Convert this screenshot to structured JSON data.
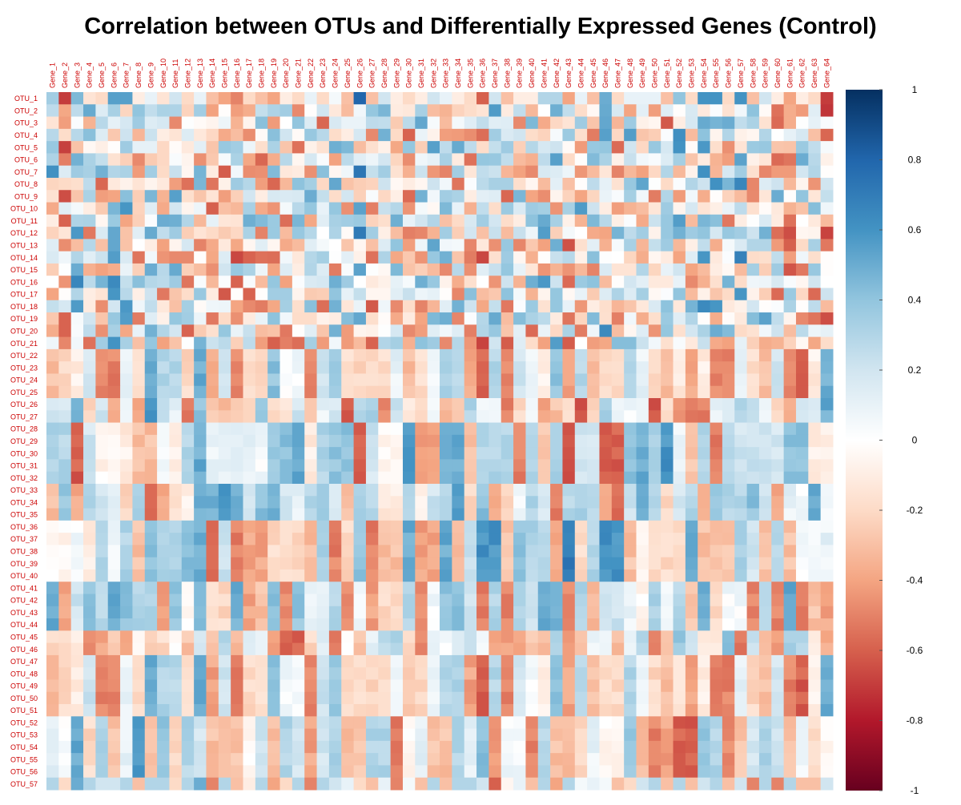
{
  "chart_data": {
    "type": "heatmap",
    "title": "Correlation between OTUs and Differentially Expressed Genes (Control)",
    "columns": [
      "Gene_1",
      "Gene_2",
      "Gene_3",
      "Gene_4",
      "Gene_5",
      "Gene_6",
      "Gene_7",
      "Gene_8",
      "Gene_9",
      "Gene_10",
      "Gene_11",
      "Gene_12",
      "Gene_13",
      "Gene_14",
      "Gene_15",
      "Gene_16",
      "Gene_17",
      "Gene_18",
      "Gene_19",
      "Gene_20",
      "Gene_21",
      "Gene_22",
      "Gene_23",
      "Gene_24",
      "Gene_25",
      "Gene_26",
      "Gene_27",
      "Gene_28",
      "Gene_29",
      "Gene_30",
      "Gene_31",
      "Gene_32",
      "Gene_33",
      "Gene_34",
      "Gene_35",
      "Gene_36",
      "Gene_37",
      "Gene_38",
      "Gene_39",
      "Gene_40",
      "Gene_41",
      "Gene_42",
      "Gene_43",
      "Gene_44",
      "Gene_45",
      "Gene_46",
      "Gene_47",
      "Gene_48",
      "Gene_49",
      "Gene_50",
      "Gene_51",
      "Gene_52",
      "Gene_53",
      "Gene_54",
      "Gene_55",
      "Gene_56",
      "Gene_57",
      "Gene_58",
      "Gene_59",
      "Gene_60",
      "Gene_61",
      "Gene_62",
      "Gene_63",
      "Gene_64"
    ],
    "rows": [
      "OTU_1",
      "OTU_2",
      "OTU_3",
      "OTU_4",
      "OTU_5",
      "OTU_6",
      "OTU_7",
      "OTU_8",
      "OTU_9",
      "OTU_10",
      "OTU_11",
      "OTU_12",
      "OTU_13",
      "OTU_14",
      "OTU_15",
      "OTU_16",
      "OTU_17",
      "OTU_18",
      "OTU_19",
      "OTU_20",
      "OTU_21",
      "OTU_22",
      "OTU_23",
      "OTU_24",
      "OTU_25",
      "OTU_26",
      "OTU_27",
      "OTU_28",
      "OTU_29",
      "OTU_30",
      "OTU_31",
      "OTU_32",
      "OTU_33",
      "OTU_34",
      "OTU_35",
      "OTU_36",
      "OTU_37",
      "OTU_38",
      "OTU_39",
      "OTU_40",
      "OTU_41",
      "OTU_42",
      "OTU_43",
      "OTU_44",
      "OTU_45",
      "OTU_46",
      "OTU_47",
      "OTU_48",
      "OTU_49",
      "OTU_50",
      "OTU_51",
      "OTU_52",
      "OTU_53",
      "OTU_54",
      "OTU_55",
      "OTU_56",
      "OTU_57"
    ],
    "value_range": [
      -1,
      1
    ],
    "row_blocks": [
      {
        "rows": [
          1,
          21
        ],
        "pattern": [
          0.35,
          -0.7,
          0.45,
          -0.15,
          -0.2,
          0.55,
          0.55,
          -0.1,
          0.1,
          -0.15,
          0.2,
          -0.2,
          0.1,
          -0.3,
          -0.4,
          -0.5,
          -0.2,
          -0.3,
          -0.4,
          -0.1,
          -0.2,
          0.1,
          -0.2,
          0.05,
          -0.3,
          0.8,
          -0.3,
          0.2,
          -0.1,
          -0.2,
          -0.1,
          0.2,
          0.1,
          -0.1,
          -0.2,
          -0.6,
          0.2,
          -0.3,
          -0.1,
          -0.1,
          0.3,
          0.3,
          -0.4,
          0.1,
          -0.3,
          0.5,
          -0.2,
          0.1,
          0.1,
          0.1,
          -0.3,
          0.4,
          -0.2,
          0.6,
          0.6,
          -0.2,
          0.6,
          -0.3,
          0.2,
          -0.1,
          -0.4,
          -0.1,
          -0.2,
          -0.7
        ],
        "noise": 0.55
      },
      {
        "rows": [
          22,
          25
        ],
        "pattern": [
          -0.3,
          -0.2,
          -0.1,
          0.2,
          -0.5,
          -0.5,
          0.1,
          -0.2,
          0.5,
          0.3,
          0.3,
          -0.2,
          0.5,
          -0.4,
          0.2,
          -0.5,
          -0.2,
          -0.2,
          0.4,
          0.05,
          0.05,
          -0.5,
          0.2,
          0.4,
          -0.2,
          -0.2,
          -0.2,
          -0.2,
          0.1,
          -0.3,
          -0.2,
          0.05,
          0.3,
          0.3,
          -0.4,
          -0.6,
          0.3,
          -0.5,
          0.2,
          0.05,
          -0.1,
          0.4,
          -0.4,
          0.3,
          -0.3,
          -0.2,
          -0.2,
          0.3,
          0.1,
          -0.2,
          -0.3,
          -0.1,
          -0.4,
          -0.1,
          -0.5,
          -0.5,
          0.1,
          -0.2,
          -0.3,
          0.2,
          -0.5,
          -0.6,
          -0.1,
          0.5
        ],
        "noise": 0.06
      },
      {
        "rows": [
          26,
          27
        ],
        "pattern": [
          0.2,
          0.2,
          0.5,
          -0.2,
          0.2,
          -0.4,
          0.05,
          -0.4,
          0.6,
          0.3,
          0.1,
          -0.5,
          0.4,
          -0.3,
          -0.3,
          -0.3,
          -0.2,
          0.4,
          -0.2,
          -0.1,
          0.2,
          -0.3,
          0.1,
          0.2,
          -0.6,
          0.3,
          0.3,
          -0.5,
          0.2,
          -0.1,
          -0.2,
          0.1,
          -0.3,
          -0.3,
          0.3,
          0.1,
          0.1,
          -0.5,
          -0.2,
          0.1,
          -0.4,
          -0.3,
          -0.2,
          -0.6,
          -0.2,
          0.3,
          0.05,
          0.05,
          0.05,
          -0.6,
          -0.2,
          -0.5,
          -0.5,
          -0.5,
          0.1,
          0.1,
          0.3,
          0.3,
          0.1,
          -0.2,
          -0.4,
          0.2,
          0.2,
          0.5
        ],
        "noise": 0.06
      },
      {
        "rows": [
          28,
          32
        ],
        "pattern": [
          0.3,
          0.3,
          -0.6,
          0.2,
          -0.05,
          -0.05,
          -0.1,
          -0.3,
          -0.3,
          0.05,
          -0.1,
          0.3,
          0.5,
          0.1,
          0.1,
          0.1,
          0.1,
          0.05,
          0.4,
          0.4,
          0.5,
          -0.1,
          0.3,
          0.4,
          0.4,
          -0.6,
          0.2,
          -0.05,
          -0.05,
          0.6,
          -0.4,
          -0.4,
          0.5,
          0.5,
          -0.3,
          0.3,
          0.3,
          0.3,
          -0.5,
          0.3,
          -0.3,
          0.3,
          -0.6,
          0.2,
          0.2,
          -0.6,
          -0.6,
          0.4,
          0.5,
          0.3,
          0.6,
          0.1,
          -0.3,
          0.3,
          -0.5,
          0.3,
          0.2,
          0.2,
          0.2,
          0.2,
          0.4,
          0.4,
          -0.1,
          -0.1
        ],
        "noise": 0.06
      },
      {
        "rows": [
          33,
          35
        ],
        "pattern": [
          -0.3,
          0.4,
          -0.4,
          0.3,
          0.2,
          0.1,
          -0.2,
          0.3,
          -0.6,
          -0.4,
          -0.2,
          -0.1,
          0.5,
          0.5,
          0.6,
          0.5,
          0.2,
          0.4,
          0.5,
          0.2,
          0.1,
          0.3,
          0.4,
          0.2,
          -0.3,
          0.3,
          0.3,
          -0.1,
          -0.1,
          0.3,
          -0.05,
          0.2,
          0.3,
          0.6,
          -0.2,
          0.4,
          -0.4,
          -0.2,
          0.05,
          0.3,
          0.2,
          -0.5,
          0.3,
          0.3,
          0.3,
          -0.4,
          -0.6,
          0.2,
          0.5,
          0.3,
          -0.2,
          0.2,
          0.3,
          -0.4,
          0.4,
          0.3,
          0.3,
          0.4,
          0.2,
          -0.4,
          0.1,
          0.05,
          0.5,
          0.05
        ],
        "noise": 0.06
      },
      {
        "rows": [
          36,
          40
        ],
        "pattern": [
          -0.05,
          -0.05,
          0.05,
          -0.1,
          0.3,
          0.05,
          0.3,
          -0.3,
          0.4,
          0.3,
          0.3,
          0.4,
          0.5,
          -0.6,
          0.2,
          -0.5,
          -0.4,
          -0.4,
          -0.2,
          -0.2,
          -0.2,
          -0.3,
          0.3,
          -0.5,
          -0.2,
          0.4,
          -0.5,
          -0.3,
          -0.3,
          0.5,
          -0.4,
          -0.4,
          0.5,
          -0.3,
          0.2,
          0.6,
          0.6,
          -0.3,
          0.4,
          0.3,
          0.3,
          -0.4,
          0.7,
          -0.2,
          0.3,
          0.6,
          0.6,
          -0.3,
          -0.05,
          -0.2,
          -0.2,
          -0.2,
          0.5,
          -0.3,
          -0.3,
          -0.3,
          0.3,
          0.2,
          -0.3,
          0.3,
          -0.3,
          0.05,
          0.05,
          0.1
        ],
        "noise": 0.06
      },
      {
        "rows": [
          41,
          44
        ],
        "pattern": [
          0.5,
          -0.4,
          0.2,
          0.4,
          0.3,
          0.5,
          0.4,
          0.3,
          0.3,
          -0.4,
          0.4,
          -0.05,
          0.4,
          -0.2,
          -0.2,
          0.5,
          -0.4,
          -0.3,
          0.4,
          -0.5,
          0.4,
          0.1,
          0.1,
          0.3,
          -0.5,
          0.05,
          -0.4,
          -0.2,
          -0.2,
          0.3,
          -0.5,
          0.05,
          0.4,
          0.4,
          0.2,
          -0.5,
          0.3,
          -0.5,
          0.3,
          0.2,
          0.5,
          0.5,
          -0.5,
          0.3,
          -0.3,
          0.2,
          0.2,
          0.1,
          -0.05,
          0.3,
          0.05,
          0.3,
          -0.3,
          0.5,
          -0.2,
          0.05,
          0.05,
          -0.5,
          0.3,
          -0.5,
          0.5,
          -0.5,
          -0.3,
          -0.4
        ],
        "noise": 0.06
      },
      {
        "rows": [
          45,
          46
        ],
        "pattern": [
          -0.2,
          -0.2,
          -0.1,
          -0.5,
          -0.4,
          -0.3,
          -0.4,
          -0.05,
          -0.2,
          -0.2,
          -0.05,
          -0.3,
          0.2,
          -0.3,
          0.3,
          -0.3,
          0.2,
          0.1,
          -0.4,
          -0.6,
          -0.6,
          -0.2,
          0.1,
          -0.5,
          -0.05,
          -0.3,
          0.1,
          0.3,
          0.3,
          -0.2,
          -0.5,
          0.1,
          0.05,
          0.2,
          0.2,
          0.1,
          -0.4,
          -0.4,
          -0.4,
          -0.3,
          -0.3,
          0.3,
          -0.4,
          -0.3,
          0.1,
          0.05,
          -0.3,
          0.05,
          0.3,
          -0.5,
          -0.3,
          0.4,
          0.2,
          -0.1,
          -0.1,
          0.4,
          -0.5,
          0.2,
          -0.3,
          -0.4,
          0.3,
          0.3,
          -0.1,
          -0.4
        ],
        "noise": 0.06
      },
      {
        "rows": [
          47,
          51
        ],
        "pattern": [
          -0.3,
          -0.2,
          -0.1,
          0.2,
          -0.5,
          -0.5,
          0.1,
          -0.2,
          0.5,
          0.3,
          0.3,
          -0.2,
          0.5,
          -0.4,
          0.2,
          -0.5,
          -0.2,
          -0.2,
          0.4,
          0.05,
          0.05,
          -0.5,
          0.2,
          0.4,
          -0.2,
          -0.2,
          -0.2,
          -0.2,
          0.1,
          -0.3,
          -0.2,
          0.05,
          0.3,
          0.3,
          -0.4,
          -0.6,
          0.3,
          -0.5,
          0.2,
          0.05,
          -0.1,
          0.4,
          -0.4,
          0.3,
          -0.3,
          -0.2,
          -0.2,
          0.3,
          0.1,
          -0.2,
          -0.3,
          -0.1,
          -0.4,
          -0.1,
          -0.5,
          -0.5,
          0.1,
          -0.2,
          -0.3,
          0.2,
          -0.5,
          -0.6,
          -0.1,
          0.5
        ],
        "noise": 0.06
      },
      {
        "rows": [
          52,
          56
        ],
        "pattern": [
          0.1,
          0.05,
          0.5,
          -0.2,
          0.3,
          -0.3,
          0.1,
          0.6,
          -0.3,
          0.4,
          -0.2,
          0.3,
          0.2,
          -0.3,
          -0.3,
          -0.3,
          -0.05,
          0.2,
          -0.3,
          0.3,
          0.2,
          -0.4,
          0.2,
          0.3,
          -0.3,
          -0.3,
          0.3,
          0.3,
          -0.5,
          -0.05,
          0.1,
          -0.3,
          -0.3,
          0.3,
          0.1,
          0.4,
          -0.4,
          0.05,
          0.05,
          -0.5,
          0.3,
          -0.3,
          -0.3,
          -0.2,
          0.1,
          -0.05,
          -0.05,
          0.4,
          -0.3,
          -0.5,
          -0.4,
          -0.6,
          -0.6,
          0.4,
          0.3,
          -0.5,
          -0.3,
          0.2,
          0.3,
          0.2,
          -0.3,
          0.05,
          -0.2,
          -0.05
        ],
        "noise": 0.06
      },
      {
        "rows": [
          57,
          57
        ],
        "pattern": [
          0.3,
          -0.2,
          0.5,
          0.3,
          0.2,
          0.2,
          0.3,
          -0.3,
          0.3,
          0.3,
          -0.2,
          0.3,
          0.5,
          -0.5,
          0.3,
          -0.3,
          -0.1,
          0.3,
          -0.4,
          -0.2,
          0.3,
          -0.5,
          0.3,
          0.2,
          0.1,
          -0.2,
          -0.3,
          0.1,
          -0.5,
          0.05,
          -0.3,
          0.3,
          -0.3,
          0.3,
          0.3,
          0.2,
          -0.6,
          -0.05,
          0.1,
          -0.3,
          0.3,
          -0.4,
          0.3,
          0.05,
          0.1,
          0.05,
          -0.3,
          -0.2,
          0.2,
          0.3,
          -0.3,
          0.3,
          -0.3,
          0.2,
          0.3,
          -0.3,
          0.2,
          -0.5,
          0.3,
          -0.5,
          0.3,
          -0.3,
          -0.3,
          0.2
        ],
        "noise": 0.2
      }
    ],
    "colorbar": {
      "ticks": [
        1,
        0.8,
        0.6,
        0.4,
        0.2,
        0,
        -0.2,
        -0.4,
        -0.6,
        -0.8,
        -1
      ],
      "tick_labels": [
        "1",
        "0.8",
        "0.6",
        "0.4",
        "0.2",
        "0",
        "-0.2",
        "-0.4",
        "-0.6",
        "-0.8",
        "-1"
      ]
    },
    "colors": {
      "neg_strong": "#67001f",
      "neg_mid": "#d6604d",
      "neutral": "#ffffff",
      "pos_mid": "#4393c3",
      "pos_strong": "#053061",
      "axis_label_color": "#cc0000",
      "title_color": "#000000"
    }
  }
}
